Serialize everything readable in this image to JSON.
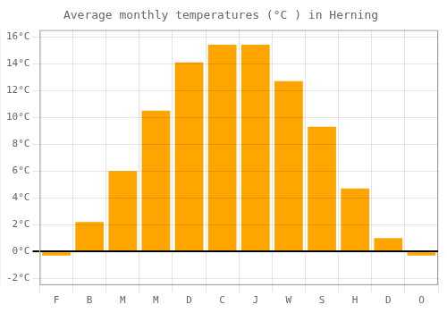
{
  "chart_data": {
    "type": "bar",
    "title": "Average monthly temperatures (°C ) in Herning",
    "categories": [
      "F",
      "B",
      "M",
      "M",
      "D",
      "C",
      "J",
      "W",
      "S",
      "H",
      "D",
      "O"
    ],
    "values": [
      -0.3,
      2.2,
      6.0,
      10.5,
      14.1,
      15.4,
      15.4,
      12.7,
      9.3,
      4.7,
      1.0,
      -0.3
    ],
    "color": "#FFA500",
    "ylim": [
      -2.5,
      16.5
    ],
    "yticks": [
      {
        "value": -2,
        "label": "-2°C"
      },
      {
        "value": 0,
        "label": "0°C"
      },
      {
        "value": 2,
        "label": "2°C"
      },
      {
        "value": 4,
        "label": "4°C"
      },
      {
        "value": 6,
        "label": "6°C"
      },
      {
        "value": 8,
        "label": "8°C"
      },
      {
        "value": 10,
        "label": "10°C"
      },
      {
        "value": 12,
        "label": "12°C"
      },
      {
        "value": 14,
        "label": "14°C"
      },
      {
        "value": 16,
        "label": "16°C"
      }
    ],
    "grid": true
  }
}
